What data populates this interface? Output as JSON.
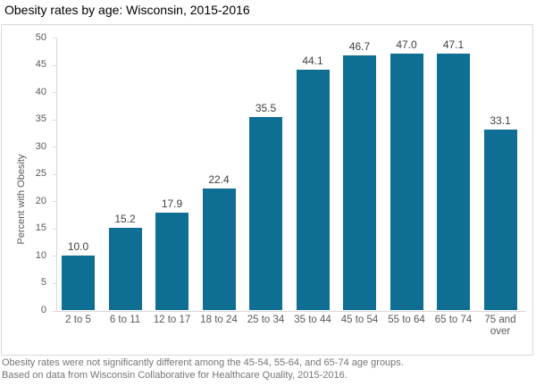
{
  "title": "Obesity rates by age: Wisconsin, 2015-2016",
  "chart_data": {
    "type": "bar",
    "title": "Obesity rates by age: Wisconsin, 2015-2016",
    "categories": [
      "2 to 5",
      "6 to 11",
      "12 to 17",
      "18 to 24",
      "25 to 34",
      "35 to 44",
      "45 to 54",
      "55 to 64",
      "65 to 74",
      "75 and over"
    ],
    "values": [
      10.0,
      15.2,
      17.9,
      22.4,
      35.5,
      44.1,
      46.7,
      47.0,
      47.1,
      33.1
    ],
    "value_labels": [
      "10.0",
      "15.2",
      "17.9",
      "22.4",
      "35.5",
      "44.1",
      "46.7",
      "47.0",
      "47.1",
      "33.1"
    ],
    "xlabel": "",
    "ylabel": "Percent with Obesity",
    "ylim": [
      0,
      50
    ],
    "yticks": [
      0,
      5,
      10,
      15,
      20,
      25,
      30,
      35,
      40,
      45,
      50
    ],
    "grid": false,
    "legend": null
  },
  "footer": {
    "line1": "Obesity rates were not significantly different among the 45-54, 55-64, and 65-74 age groups.",
    "line2": "Based on data from Wisconsin Collaborative for Healthcare Quality, 2015-2016."
  },
  "colors": {
    "bar": "#0e6e93",
    "axis": "#d9d9d9",
    "tick_label": "#595959",
    "data_label": "#404040",
    "title": "#000000",
    "footer": "#757575"
  }
}
